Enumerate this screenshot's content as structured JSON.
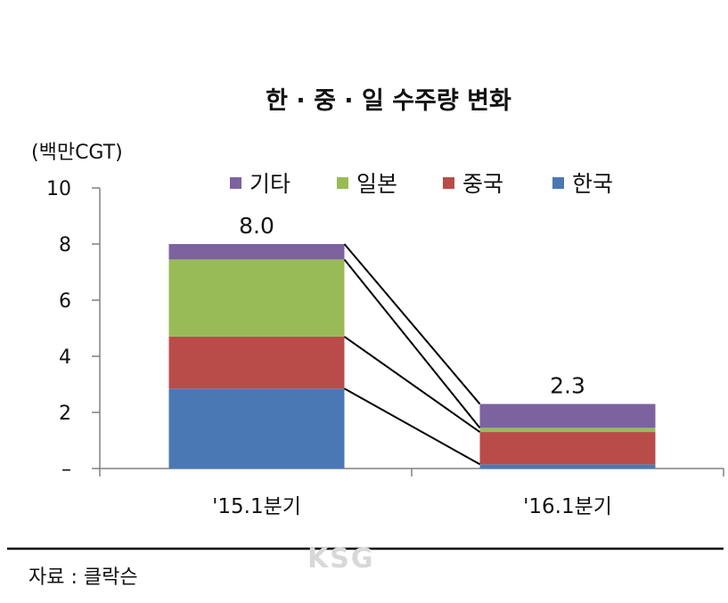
{
  "chart_data": {
    "type": "bar",
    "stacked": true,
    "title": "한 · 중 · 일 수주량 변화",
    "ylabel": "(백만CGT)",
    "ylim": [
      0,
      10
    ],
    "yticks": [
      0,
      2,
      4,
      6,
      8,
      10
    ],
    "ytick_labels": [
      "–",
      "2",
      "4",
      "6",
      "8",
      "10"
    ],
    "categories": [
      "'15.1분기",
      "'16.1분기"
    ],
    "series": [
      {
        "name": "한국",
        "color": "#4a78b4",
        "values": [
          2.85,
          0.15
        ]
      },
      {
        "name": "중국",
        "color": "#b94c48",
        "values": [
          1.85,
          1.15
        ]
      },
      {
        "name": "일본",
        "color": "#98bb57",
        "values": [
          2.75,
          0.15
        ]
      },
      {
        "name": "기타",
        "color": "#7d62a0",
        "values": [
          0.55,
          0.85
        ]
      }
    ],
    "legend_order": [
      "기타",
      "일본",
      "중국",
      "한국"
    ],
    "totals": [
      "8.0",
      "2.3"
    ],
    "legend_position": "top",
    "grid": false,
    "connector_lines": true
  },
  "source": "자료 : 클락슨",
  "watermark": "KSG"
}
